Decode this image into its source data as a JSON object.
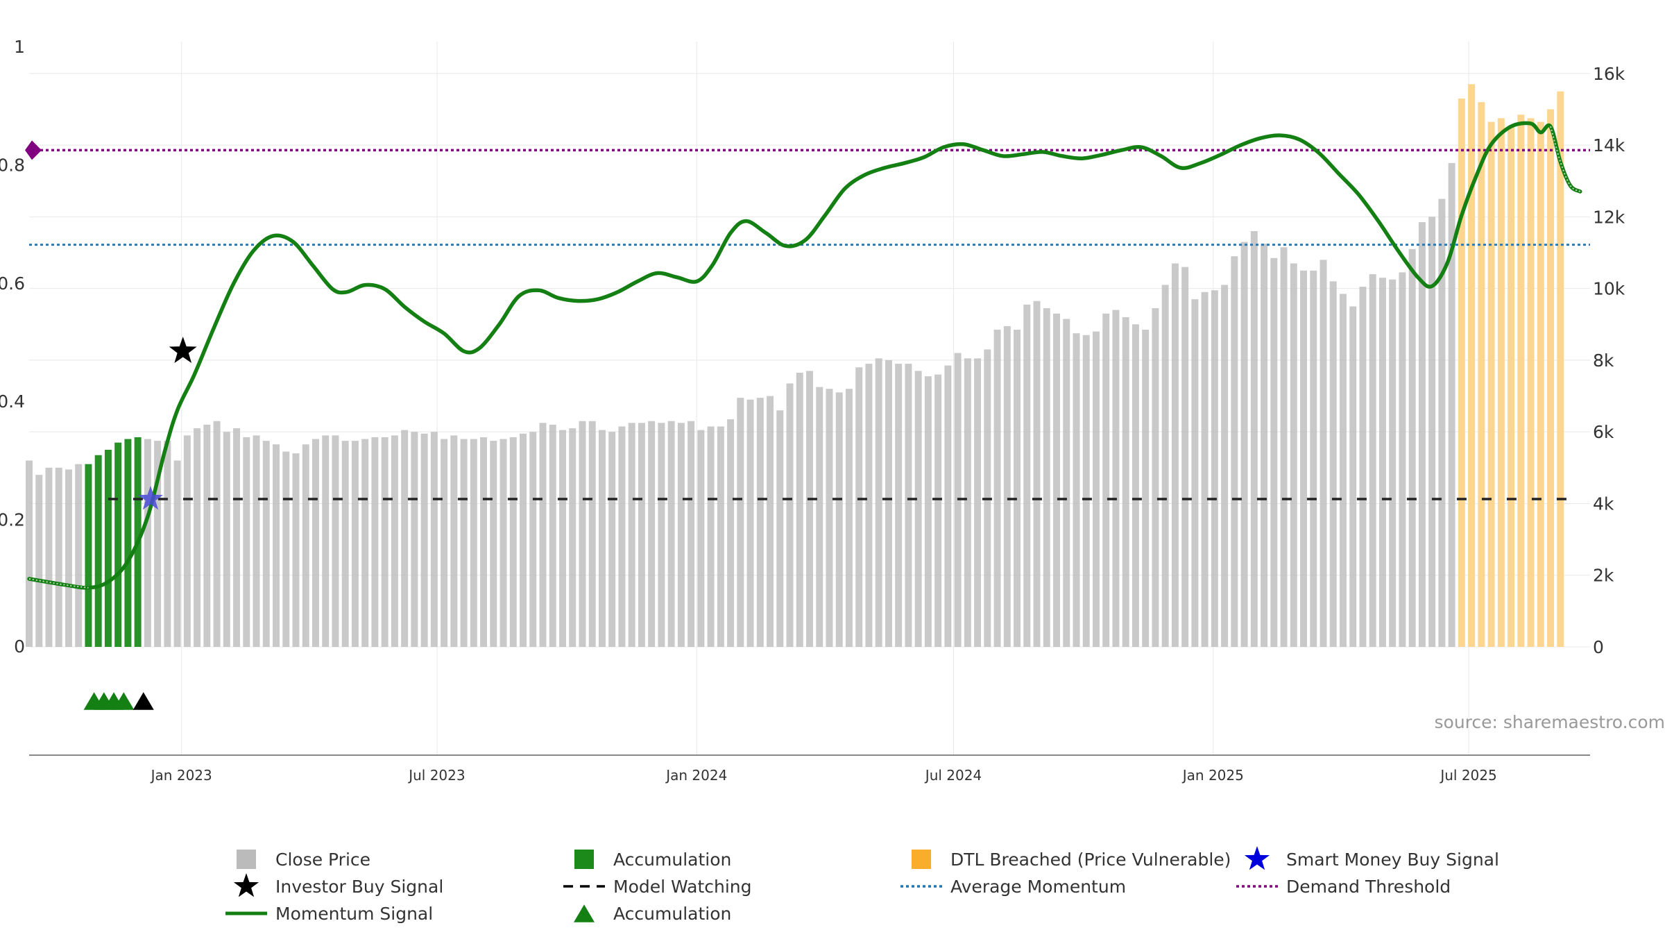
{
  "chart_data": {
    "type": "bar",
    "title": "",
    "source": "source: sharemaestro.com",
    "x_axis": {
      "start": "2022-09-15",
      "end": "2025-09-25",
      "ticks": [
        {
          "date": "2023-01-01",
          "label": "Jan 2023"
        },
        {
          "date": "2023-07-01",
          "label": "Jul 2023"
        },
        {
          "date": "2024-01-01",
          "label": "Jan 2024"
        },
        {
          "date": "2024-07-01",
          "label": "Jul 2024"
        },
        {
          "date": "2025-01-01",
          "label": "Jan 2025"
        },
        {
          "date": "2025-07-01",
          "label": "Jul 2025"
        }
      ]
    },
    "y_left": {
      "min": 0,
      "max": 1,
      "ticks": [
        {
          "v": 0,
          "label": "0"
        },
        {
          "v": 0.2,
          "label": "0.2"
        },
        {
          "v": 0.4,
          "label": "0.4"
        },
        {
          "v": 0.6,
          "label": "0.6"
        },
        {
          "v": 0.8,
          "label": "0.8"
        },
        {
          "v": 1,
          "label": "1"
        }
      ]
    },
    "y_right": {
      "min": 0,
      "max": 16500,
      "ticks": [
        {
          "v": 0,
          "label": "0"
        },
        {
          "v": 2000,
          "label": "2k"
        },
        {
          "v": 4000,
          "label": "4k"
        },
        {
          "v": 6000,
          "label": "6k"
        },
        {
          "v": 8000,
          "label": "8k"
        },
        {
          "v": 10000,
          "label": "10k"
        },
        {
          "v": 12000,
          "label": "12k"
        },
        {
          "v": 14000,
          "label": "14k"
        },
        {
          "v": 16000,
          "label": "16k"
        }
      ]
    },
    "close_price": {
      "name": "Close Price",
      "start_date": "2022-09-15",
      "interval_days": 7,
      "values": [
        5200,
        4800,
        5000,
        5000,
        4950,
        5100,
        5100,
        5350,
        5500,
        5700,
        5800,
        5850,
        5800,
        5750,
        5750,
        5200,
        5900,
        6100,
        6200,
        6300,
        6000,
        6100,
        5850,
        5900,
        5750,
        5650,
        5450,
        5400,
        5650,
        5800,
        5900,
        5900,
        5750,
        5750,
        5800,
        5850,
        5850,
        5900,
        6050,
        6000,
        5950,
        6000,
        5800,
        5900,
        5800,
        5800,
        5850,
        5750,
        5800,
        5850,
        5950,
        6000,
        6250,
        6200,
        6050,
        6100,
        6300,
        6300,
        6050,
        6000,
        6150,
        6250,
        6250,
        6300,
        6250,
        6300,
        6250,
        6300,
        6050,
        6150,
        6150,
        6350,
        6950,
        6900,
        6950,
        7000,
        6600,
        7350,
        7650,
        7700,
        7250,
        7200,
        7100,
        7200,
        7800,
        7900,
        8050,
        8000,
        7900,
        7900,
        7700,
        7550,
        7600,
        7850,
        8200,
        8050,
        8050,
        8300,
        8850,
        8950,
        8850,
        9550,
        9650,
        9450,
        9300,
        9150,
        8750,
        8700,
        8800,
        9300,
        9400,
        9200,
        9000,
        8850,
        9450,
        10100,
        10700,
        10600,
        9700,
        9900,
        9950,
        10100,
        10900,
        11300,
        11600,
        11250,
        10850,
        11150,
        10700,
        10500,
        10500,
        10800,
        10200,
        9850,
        9500,
        10050,
        10400,
        10300,
        10250,
        10450,
        11100,
        11850,
        12000,
        12500,
        13500,
        15300,
        15700,
        15200,
        14650,
        14750,
        14550,
        14850,
        14750,
        14650,
        15000,
        15500
      ],
      "accumulation_index_range": [
        6,
        11
      ],
      "dtl_breached_index_range": [
        145,
        155
      ]
    },
    "momentum_signal": {
      "name": "Momentum Signal",
      "points": [
        [
          "2022-09-15",
          0.115
        ],
        [
          "2022-10-10",
          0.105
        ],
        [
          "2022-10-27",
          0.1
        ],
        [
          "2022-11-10",
          0.11
        ],
        [
          "2022-11-24",
          0.145
        ],
        [
          "2022-12-08",
          0.22
        ],
        [
          "2022-12-20",
          0.33
        ],
        [
          "2022-12-29",
          0.4
        ],
        [
          "2023-01-10",
          0.46
        ],
        [
          "2023-01-24",
          0.54
        ],
        [
          "2023-02-07",
          0.615
        ],
        [
          "2023-02-21",
          0.67
        ],
        [
          "2023-03-07",
          0.695
        ],
        [
          "2023-03-21",
          0.685
        ],
        [
          "2023-04-04",
          0.645
        ],
        [
          "2023-04-18",
          0.605
        ],
        [
          "2023-04-28",
          0.6
        ],
        [
          "2023-05-11",
          0.612
        ],
        [
          "2023-05-25",
          0.605
        ],
        [
          "2023-06-08",
          0.575
        ],
        [
          "2023-06-22",
          0.55
        ],
        [
          "2023-07-06",
          0.53
        ],
        [
          "2023-07-20",
          0.5
        ],
        [
          "2023-07-31",
          0.505
        ],
        [
          "2023-08-14",
          0.545
        ],
        [
          "2023-08-28",
          0.593
        ],
        [
          "2023-09-11",
          0.603
        ],
        [
          "2023-09-25",
          0.59
        ],
        [
          "2023-10-09",
          0.585
        ],
        [
          "2023-10-23",
          0.588
        ],
        [
          "2023-11-06",
          0.6
        ],
        [
          "2023-11-20",
          0.618
        ],
        [
          "2023-12-04",
          0.632
        ],
        [
          "2023-12-18",
          0.625
        ],
        [
          "2024-01-01",
          0.618
        ],
        [
          "2024-01-12",
          0.645
        ],
        [
          "2024-01-25",
          0.7
        ],
        [
          "2024-02-05",
          0.72
        ],
        [
          "2024-02-19",
          0.7
        ],
        [
          "2024-03-04",
          0.678
        ],
        [
          "2024-03-18",
          0.688
        ],
        [
          "2024-04-01",
          0.73
        ],
        [
          "2024-04-15",
          0.775
        ],
        [
          "2024-04-29",
          0.798
        ],
        [
          "2024-05-13",
          0.81
        ],
        [
          "2024-05-27",
          0.818
        ],
        [
          "2024-06-10",
          0.828
        ],
        [
          "2024-06-24",
          0.845
        ],
        [
          "2024-07-08",
          0.85
        ],
        [
          "2024-07-22",
          0.84
        ],
        [
          "2024-08-05",
          0.83
        ],
        [
          "2024-08-19",
          0.833
        ],
        [
          "2024-09-02",
          0.837
        ],
        [
          "2024-09-16",
          0.83
        ],
        [
          "2024-09-30",
          0.826
        ],
        [
          "2024-10-14",
          0.832
        ],
        [
          "2024-10-28",
          0.84
        ],
        [
          "2024-11-11",
          0.845
        ],
        [
          "2024-11-25",
          0.83
        ],
        [
          "2024-12-09",
          0.81
        ],
        [
          "2024-12-23",
          0.818
        ],
        [
          "2025-01-06",
          0.832
        ],
        [
          "2025-01-20",
          0.848
        ],
        [
          "2025-02-03",
          0.86
        ],
        [
          "2025-02-17",
          0.865
        ],
        [
          "2025-03-03",
          0.858
        ],
        [
          "2025-03-17",
          0.835
        ],
        [
          "2025-03-31",
          0.8
        ],
        [
          "2025-04-14",
          0.765
        ],
        [
          "2025-04-28",
          0.72
        ],
        [
          "2025-05-12",
          0.67
        ],
        [
          "2025-05-26",
          0.625
        ],
        [
          "2025-06-05",
          0.61
        ],
        [
          "2025-06-16",
          0.65
        ],
        [
          "2025-06-26",
          0.73
        ],
        [
          "2025-07-07",
          0.8
        ],
        [
          "2025-07-17",
          0.85
        ],
        [
          "2025-07-31",
          0.88
        ],
        [
          "2025-08-14",
          0.885
        ],
        [
          "2025-08-21",
          0.87
        ],
        [
          "2025-08-28",
          0.88
        ],
        [
          "2025-09-04",
          0.82
        ],
        [
          "2025-09-11",
          0.78
        ],
        [
          "2025-09-18",
          0.77
        ]
      ],
      "muted_before": "2022-11-01",
      "muted_after": "2025-08-28"
    },
    "model_watching": {
      "name": "Model Watching",
      "value": 0.25,
      "from": "2022-11-10",
      "to": "2025-09-18"
    },
    "average_momentum": {
      "name": "Average Momentum",
      "value": 0.68
    },
    "demand_threshold": {
      "name": "Demand Threshold",
      "value": 0.84
    },
    "investor_buy_signal": {
      "name": "Investor Buy Signal",
      "date": "2023-01-01",
      "value": 0.5
    },
    "smart_money_buy_signal": {
      "name": "Smart Money Buy Signal",
      "date": "2022-12-10",
      "value": 0.25
    },
    "accumulation_triangles": {
      "name": "Accumulation",
      "dates": [
        "2022-10-31",
        "2022-11-07",
        "2022-11-14",
        "2022-11-21"
      ],
      "last_signal_date": "2022-12-05"
    },
    "legend": [
      {
        "label": "Close Price",
        "kind": "square",
        "color": "#bbbbbb"
      },
      {
        "label": "Accumulation",
        "kind": "square",
        "color": "#1b8a1b"
      },
      {
        "label": "DTL Breached (Price Vulnerable)",
        "kind": "square",
        "color": "#f9ad2a"
      },
      {
        "label": "Smart Money Buy Signal",
        "kind": "star",
        "color": "#0000dd"
      },
      {
        "label": "Investor Buy Signal",
        "kind": "star",
        "color": "#000000"
      },
      {
        "label": "Model Watching",
        "kind": "dash",
        "color": "#000000"
      },
      {
        "label": "Average Momentum",
        "kind": "dot",
        "color": "#1f77b4"
      },
      {
        "label": "Demand Threshold",
        "kind": "dot",
        "color": "#800080"
      },
      {
        "label": "Momentum Signal",
        "kind": "line",
        "color": "#148014"
      },
      {
        "label": "Accumulation",
        "kind": "triangle",
        "color": "#148014"
      }
    ],
    "colors": {
      "price_bar": "#bbbbbb",
      "accumulation_bar": "#1b8a1b",
      "dtl_bar": "#fcd48a",
      "momentum": "#148014",
      "average_momentum": "#2b7bb9",
      "demand_threshold": "#800080",
      "model_watching": "#222222",
      "grid": "#e8e8e8",
      "axis": "#888888"
    }
  }
}
